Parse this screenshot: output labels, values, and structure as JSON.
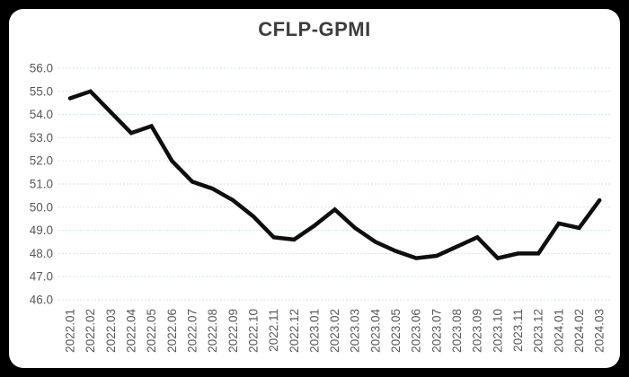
{
  "frame": {
    "background_color": "#000000",
    "card_color": "#ffffff"
  },
  "chart_data": {
    "type": "line",
    "title": "CFLP-GPMI",
    "categories": [
      "2022.01",
      "2022.02",
      "2022.03",
      "2022.04",
      "2022.05",
      "2022.06",
      "2022.07",
      "2022.08",
      "2022.09",
      "2022.10",
      "2022.11",
      "2022.12",
      "2023.01",
      "2023.02",
      "2023.03",
      "2023.04",
      "2023.05",
      "2023.06",
      "2023.07",
      "2023.08",
      "2023.09",
      "2023.10",
      "2023.11",
      "2023.12",
      "2024.01",
      "2024.02",
      "2024.03"
    ],
    "series": [
      {
        "name": "CFLP-GPMI",
        "values": [
          54.7,
          55.0,
          54.1,
          53.2,
          53.5,
          52.0,
          51.1,
          50.8,
          50.3,
          49.6,
          48.7,
          48.6,
          49.2,
          49.9,
          49.1,
          48.5,
          48.1,
          47.8,
          47.9,
          48.3,
          48.7,
          47.8,
          48.0,
          48.0,
          49.3,
          49.1,
          50.3
        ],
        "color": "#0e0e0e"
      }
    ],
    "xlabel": "",
    "ylabel": "",
    "ylim": [
      46.0,
      56.0
    ],
    "ytick_step": 1.0,
    "ytick_labels": [
      "56.0",
      "55.0",
      "54.0",
      "53.0",
      "52.0",
      "51.0",
      "50.0",
      "49.0",
      "48.0",
      "47.0",
      "46.0"
    ],
    "grid": "horizontal",
    "gridline_style": "dashed",
    "gridline_color": "#cfe7e3",
    "tick_label_color": "#595959",
    "title_color": "#3d3d3d",
    "legend": "none",
    "x_labels_rotated": true
  }
}
